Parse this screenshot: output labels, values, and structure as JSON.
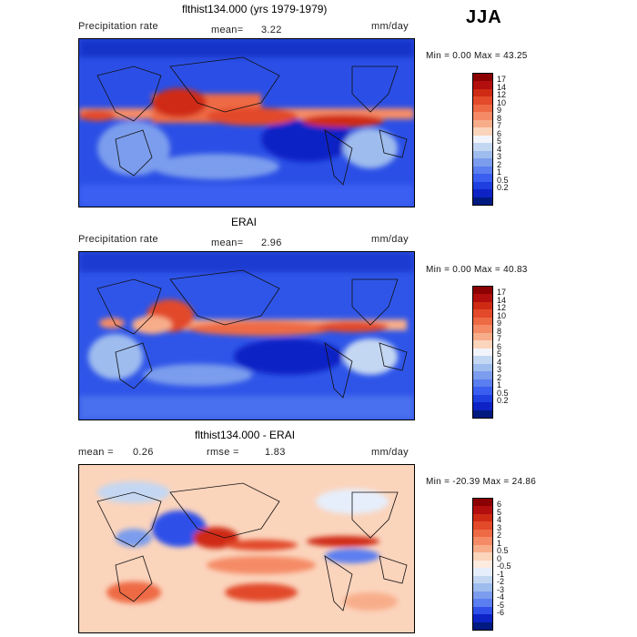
{
  "season": "JJA",
  "panels": [
    {
      "title": "flthist134.000 (yrs 1979-1979)",
      "left_label": "Precipitation rate",
      "mid_label": "mean=",
      "mid_value": "3.22",
      "units": "mm/day",
      "minmax": "Min =    0.00 Max =   43.25",
      "colorbar_labels": [
        "17",
        "14",
        "12",
        "10",
        "9",
        "8",
        "7",
        "6",
        "5",
        "4",
        "3",
        "2",
        "1",
        "0.5",
        "0.2"
      ],
      "colorbar_colors": [
        "#8b0000",
        "#b30e0e",
        "#cf2a14",
        "#e24a2a",
        "#ee6a45",
        "#f58b66",
        "#f8ad8a",
        "#fbd4bc",
        "#f2f4fb",
        "#c4d7f2",
        "#9ebcee",
        "#7c9ded",
        "#5b7ef0",
        "#3a5ef0",
        "#1f3fe0",
        "#0d23c5",
        "#001a80"
      ]
    },
    {
      "title": "ERAI",
      "left_label": "Precipitation rate",
      "mid_label": "mean=",
      "mid_value": "2.96",
      "units": "mm/day",
      "minmax": "Min =    0.00 Max =   40.83",
      "colorbar_labels": [
        "17",
        "14",
        "12",
        "10",
        "9",
        "8",
        "7",
        "6",
        "5",
        "4",
        "3",
        "2",
        "1",
        "0.5",
        "0.2"
      ],
      "colorbar_colors": [
        "#8b0000",
        "#b30e0e",
        "#cf2a14",
        "#e24a2a",
        "#ee6a45",
        "#f58b66",
        "#f8ad8a",
        "#fbd4bc",
        "#f2f4fb",
        "#c4d7f2",
        "#9ebcee",
        "#7c9ded",
        "#5b7ef0",
        "#3a5ef0",
        "#1f3fe0",
        "#0d23c5",
        "#001a80"
      ]
    },
    {
      "title": "flthist134.000 - ERAI",
      "left_label": "mean =",
      "left_value": "0.26",
      "mid_label": "rmse =",
      "mid_value": "1.83",
      "units": "mm/day",
      "minmax": "Min = -20.39 Max =   24.86",
      "colorbar_labels": [
        "6",
        "5",
        "4",
        "3",
        "2",
        "1",
        "0.5",
        "0",
        "-0.5",
        "-1",
        "-2",
        "-3",
        "-4",
        "-5",
        "-6"
      ],
      "colorbar_colors": [
        "#8b0000",
        "#b30e0e",
        "#cf2a14",
        "#e24a2a",
        "#ee6a45",
        "#f58b66",
        "#f8ad8a",
        "#fbd4bc",
        "#fdebe0",
        "#e6eefb",
        "#c4d7f2",
        "#9ebcee",
        "#7c9ded",
        "#5b7ef0",
        "#2f4fe8",
        "#0d23c5",
        "#001a80"
      ]
    }
  ]
}
